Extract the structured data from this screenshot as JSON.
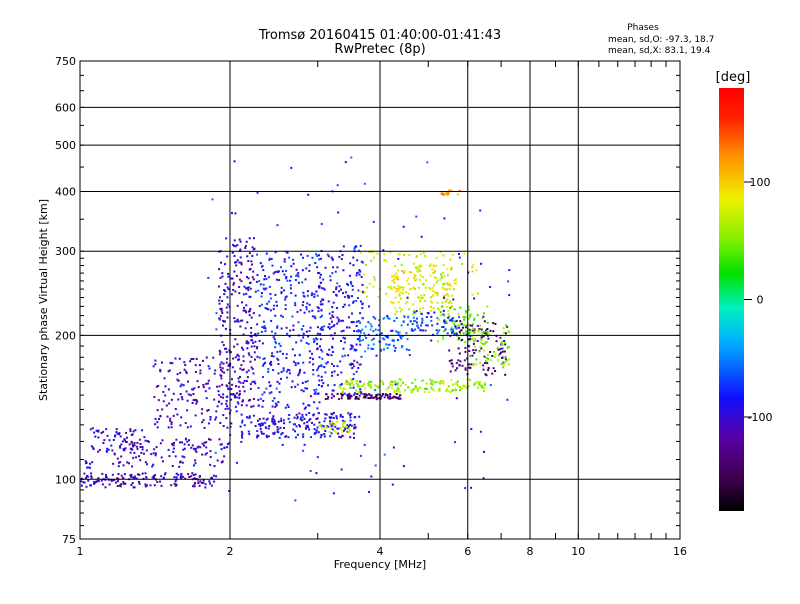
{
  "chart_data": {
    "type": "scatter",
    "title": "Tromsø 20160415 01:40:00-01:41:43",
    "subtitle": "RwPretec (8p)",
    "xlabel": "Frequency [MHz]",
    "ylabel": "Stationary phase Virtual Height [km]",
    "x_scale": "log",
    "y_scale": "log",
    "xlim": [
      1,
      16
    ],
    "ylim": [
      75,
      750
    ],
    "x_ticks": [
      "1",
      "2",
      "4",
      "6",
      "8",
      "10",
      "16"
    ],
    "x_tick_values": [
      1,
      2,
      4,
      6,
      8,
      10,
      16
    ],
    "y_ticks": [
      "75",
      "100",
      "200",
      "300",
      "400",
      "500",
      "600",
      "750"
    ],
    "y_tick_values": [
      75,
      100,
      200,
      300,
      400,
      500,
      600,
      750
    ],
    "grid": true,
    "phases": {
      "heading": "Phases",
      "o_stats": "mean, sd,O: -97.3, 18.7",
      "x_stats": "mean, sd,X:  83.1, 19.4"
    },
    "colorbar": {
      "label": "[deg]",
      "range": [
        -180,
        180
      ],
      "ticks": [
        "100",
        "0",
        "-100"
      ],
      "tick_values": [
        100,
        0,
        -100
      ]
    },
    "clusters": [
      {
        "x": [
          1.0,
          1.06
        ],
        "y": [
          105,
          110
        ],
        "n": 10,
        "phase": -100
      },
      {
        "x": [
          1.0,
          1.9
        ],
        "y": [
          96,
          103
        ],
        "n": 150,
        "phase": -110
      },
      {
        "x": [
          1.05,
          1.35
        ],
        "y": [
          113,
          128
        ],
        "n": 60,
        "phase": -105
      },
      {
        "x": [
          1.15,
          2.0
        ],
        "y": [
          106,
          122
        ],
        "n": 120,
        "phase": -108
      },
      {
        "x": [
          1.4,
          2.05
        ],
        "y": [
          128,
          180
        ],
        "n": 150,
        "phase": -110
      },
      {
        "x": [
          1.9,
          2.25
        ],
        "y": [
          140,
          320
        ],
        "n": 260,
        "phase": -105
      },
      {
        "x": [
          2.1,
          3.6
        ],
        "y": [
          122,
          138
        ],
        "n": 200,
        "phase": -95
      },
      {
        "x": [
          2.25,
          3.1
        ],
        "y": [
          140,
          300
        ],
        "n": 320,
        "phase": -85
      },
      {
        "x": [
          3.0,
          3.7
        ],
        "y": [
          150,
          310
        ],
        "n": 220,
        "phase": -90
      },
      {
        "x": [
          3.6,
          4.6
        ],
        "y": [
          185,
          220
        ],
        "n": 90,
        "phase": -60
      },
      {
        "x": [
          3.1,
          4.4
        ],
        "y": [
          147,
          151
        ],
        "n": 90,
        "phase": -140
      },
      {
        "x": [
          3.3,
          6.5
        ],
        "y": [
          152,
          162
        ],
        "n": 170,
        "phase": 60
      },
      {
        "x": [
          4.2,
          5.6
        ],
        "y": [
          220,
          280
        ],
        "n": 150,
        "phase": 80
      },
      {
        "x": [
          5.2,
          6.6
        ],
        "y": [
          190,
          230
        ],
        "n": 80,
        "phase": 40
      },
      {
        "x": [
          4.6,
          5.8
        ],
        "y": [
          200,
          225
        ],
        "n": 70,
        "phase": -70
      },
      {
        "x": [
          5.5,
          7.2
        ],
        "y": [
          165,
          215
        ],
        "n": 110,
        "phase": -140
      },
      {
        "x": [
          6.0,
          7.3
        ],
        "y": [
          170,
          210
        ],
        "n": 60,
        "phase": 50
      },
      {
        "x": [
          3.6,
          6.3
        ],
        "y": [
          240,
          300
        ],
        "n": 90,
        "phase": 75
      },
      {
        "x": [
          5.3,
          5.8
        ],
        "y": [
          392,
          402
        ],
        "n": 14,
        "phase": 120
      },
      {
        "x": [
          3.0,
          3.5
        ],
        "y": [
          125,
          132
        ],
        "n": 30,
        "phase": 80
      },
      {
        "x": [
          1.8,
          7.5
        ],
        "y": [
          90,
          480
        ],
        "n": 120,
        "phase": -80
      }
    ]
  }
}
